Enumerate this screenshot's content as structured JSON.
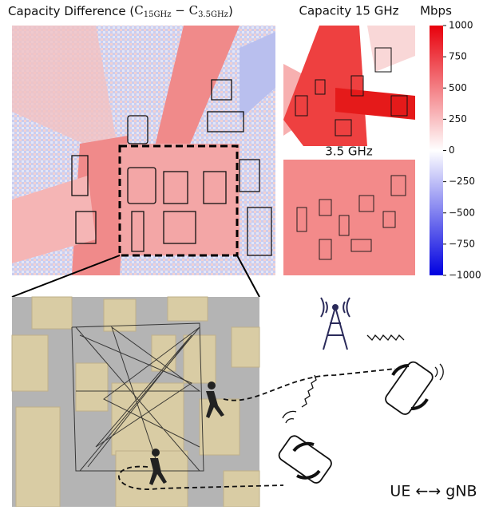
{
  "figure": {
    "panels": [
      {
        "title_parts": [
          "Capacity Difference (",
          "C",
          "15GHz",
          " − C",
          "3.5GHz",
          ")"
        ]
      },
      {
        "title": "Capacity 15 GHz"
      },
      {
        "title": "3.5 GHz"
      }
    ],
    "colorbar": {
      "label": "Mbps",
      "lim": [
        -1000,
        1000
      ],
      "ticks": [
        1000,
        750,
        500,
        250,
        0,
        {
          "value": -250,
          "label": "−250"
        },
        {
          "value": -500,
          "label": "−500"
        },
        {
          "value": -750,
          "label": "−750"
        },
        {
          "value": -1000,
          "label": "−1000"
        }
      ]
    }
  },
  "illustration": {
    "label": "UE ←→ gNB"
  }
}
